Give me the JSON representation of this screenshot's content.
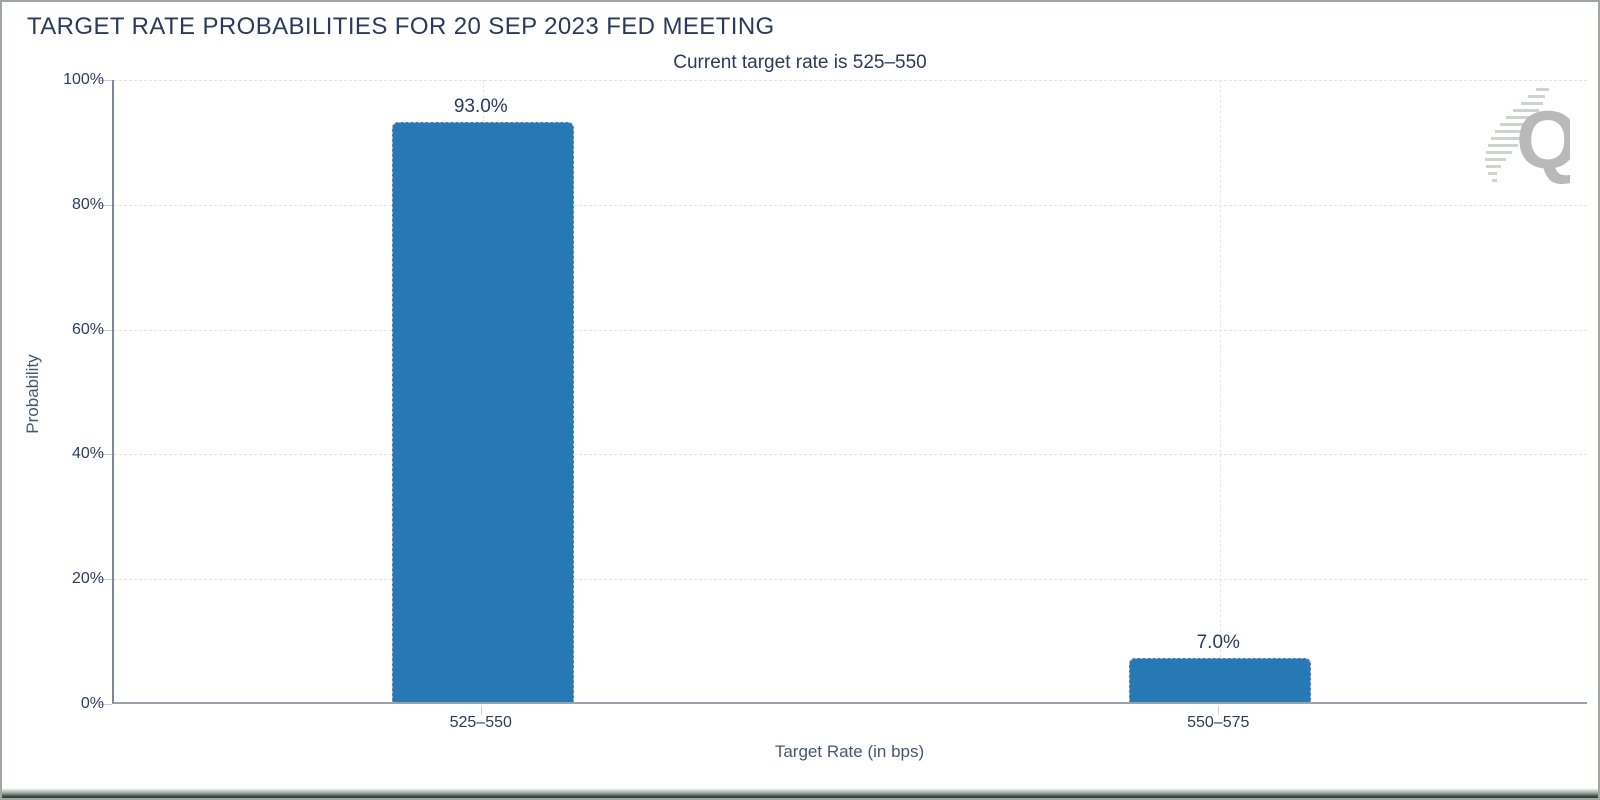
{
  "window": {
    "watermark_letter": "Q"
  },
  "chart_data": {
    "type": "bar",
    "title": "TARGET RATE PROBABILITIES FOR 20 SEP 2023 FED MEETING",
    "subtitle": "Current target rate is 525–550",
    "categories": [
      "525–550",
      "550–575"
    ],
    "values": [
      93.0,
      7.0
    ],
    "value_labels": [
      "93.0%",
      "7.0%"
    ],
    "xlabel": "Target Rate (in bps)",
    "ylabel": "Probability",
    "ylim": [
      0,
      100
    ],
    "yticks": [
      {
        "value": 0,
        "label": "0%"
      },
      {
        "value": 20,
        "label": "20%"
      },
      {
        "value": 40,
        "label": "40%"
      },
      {
        "value": 60,
        "label": "60%"
      },
      {
        "value": 80,
        "label": "80%"
      },
      {
        "value": 100,
        "label": "100%"
      }
    ],
    "grid": true,
    "legend": false,
    "bar_color": "#2779b5",
    "text_color": "#2b3a5c",
    "axis_title_color": "#47576f",
    "gridline_color": "#e1e4e7"
  }
}
